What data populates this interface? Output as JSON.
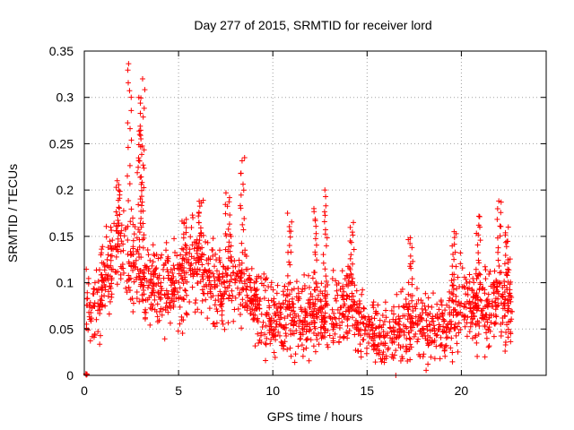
{
  "chart_data": {
    "type": "scatter",
    "title": "Day 277 of 2015, SRMTID for receiver lord",
    "xlabel": "GPS time / hours",
    "ylabel": "SRMTID / TECUs",
    "xlim": [
      0,
      24.5
    ],
    "ylim": [
      0,
      0.35
    ],
    "x_ticks": [
      0,
      5,
      10,
      15,
      20
    ],
    "x_tick_labels": [
      "0",
      "5",
      "10",
      "15",
      "20"
    ],
    "y_ticks": [
      0,
      0.05,
      0.1,
      0.15,
      0.2,
      0.25,
      0.3,
      0.35
    ],
    "y_tick_labels": [
      "0",
      "0.05",
      "0.1",
      "0.15",
      "0.2",
      "0.25",
      "0.3",
      "0.35"
    ],
    "grid": true,
    "marker": "plus",
    "series_color": "#ff0000",
    "trend": [
      {
        "x": 0.0,
        "y": 0.0
      },
      {
        "x": 0.1,
        "y": 0.075
      },
      {
        "x": 0.5,
        "y": 0.075
      },
      {
        "x": 1.0,
        "y": 0.1
      },
      {
        "x": 1.5,
        "y": 0.13
      },
      {
        "x": 2.0,
        "y": 0.14
      },
      {
        "x": 2.5,
        "y": 0.12
      },
      {
        "x": 3.0,
        "y": 0.11
      },
      {
        "x": 3.5,
        "y": 0.1
      },
      {
        "x": 4.0,
        "y": 0.09
      },
      {
        "x": 5.0,
        "y": 0.1
      },
      {
        "x": 6.0,
        "y": 0.12
      },
      {
        "x": 7.0,
        "y": 0.1
      },
      {
        "x": 8.0,
        "y": 0.1
      },
      {
        "x": 9.0,
        "y": 0.08
      },
      {
        "x": 10.0,
        "y": 0.06
      },
      {
        "x": 11.0,
        "y": 0.06
      },
      {
        "x": 12.0,
        "y": 0.065
      },
      {
        "x": 13.0,
        "y": 0.06
      },
      {
        "x": 14.0,
        "y": 0.08
      },
      {
        "x": 15.0,
        "y": 0.045
      },
      {
        "x": 16.0,
        "y": 0.045
      },
      {
        "x": 17.0,
        "y": 0.055
      },
      {
        "x": 18.0,
        "y": 0.05
      },
      {
        "x": 19.0,
        "y": 0.05
      },
      {
        "x": 20.0,
        "y": 0.08
      },
      {
        "x": 21.0,
        "y": 0.07
      },
      {
        "x": 22.0,
        "y": 0.08
      },
      {
        "x": 22.7,
        "y": 0.08
      }
    ],
    "spikes": [
      {
        "x": 2.4,
        "peak": 0.34
      },
      {
        "x": 3.1,
        "peak": 0.32
      },
      {
        "x": 2.9,
        "peak": 0.3
      },
      {
        "x": 3.0,
        "peak": 0.26
      },
      {
        "x": 1.8,
        "peak": 0.21
      },
      {
        "x": 5.3,
        "peak": 0.17
      },
      {
        "x": 6.2,
        "peak": 0.19
      },
      {
        "x": 7.6,
        "peak": 0.2
      },
      {
        "x": 8.4,
        "peak": 0.235
      },
      {
        "x": 10.9,
        "peak": 0.175
      },
      {
        "x": 12.3,
        "peak": 0.18
      },
      {
        "x": 12.8,
        "peak": 0.2
      },
      {
        "x": 14.2,
        "peak": 0.165
      },
      {
        "x": 17.3,
        "peak": 0.15
      },
      {
        "x": 19.6,
        "peak": 0.155
      },
      {
        "x": 20.9,
        "peak": 0.175
      },
      {
        "x": 22.0,
        "peak": 0.19
      },
      {
        "x": 22.4,
        "peak": 0.16
      }
    ],
    "point_count": 1800
  }
}
